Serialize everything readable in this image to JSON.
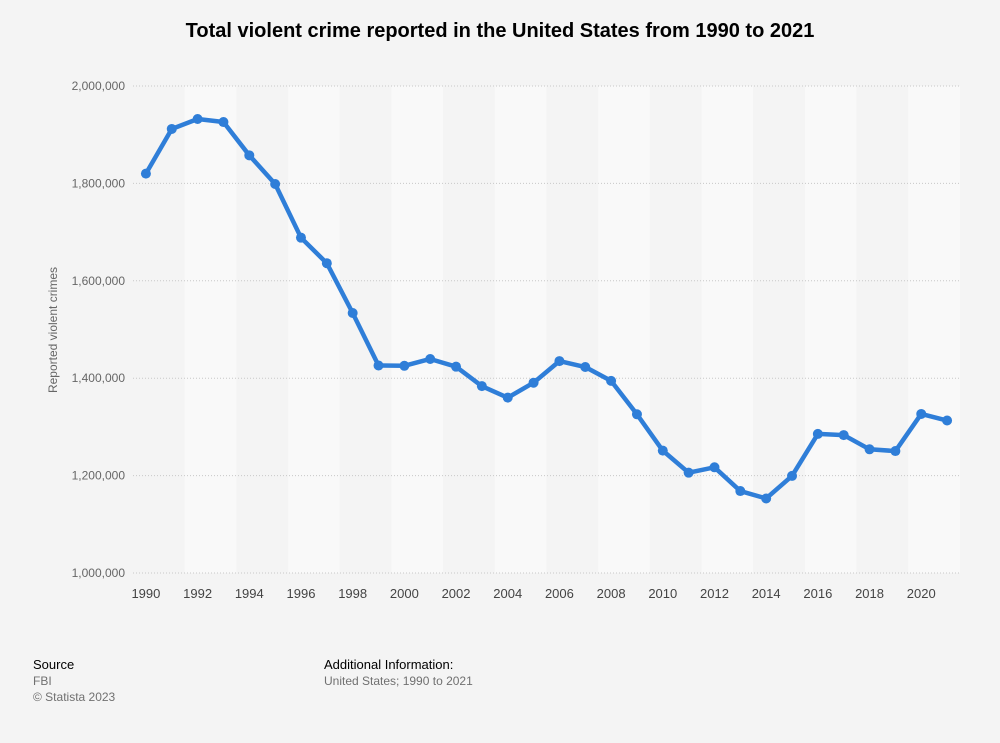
{
  "chart_data": {
    "type": "line",
    "title": "Total violent crime reported in the United States from 1990 to 2021",
    "xlabel": "",
    "ylabel": "Reported violent crimes",
    "ylim": [
      1000000,
      2000000
    ],
    "yticks": [
      1000000,
      1200000,
      1400000,
      1600000,
      1800000,
      2000000
    ],
    "ytick_labels": [
      "1,000,000",
      "1,200,000",
      "1,400,000",
      "1,600,000",
      "1,800,000",
      "2,000,000"
    ],
    "xticks": [
      "1990",
      "1992",
      "1994",
      "1996",
      "1998",
      "2000",
      "2002",
      "2004",
      "2006",
      "2008",
      "2010",
      "2012",
      "2014",
      "2016",
      "2018",
      "2020"
    ],
    "grid": true,
    "series": [
      {
        "name": "Reported violent crimes",
        "color": "#2f7ed8",
        "x": [
          1990,
          1991,
          1992,
          1993,
          1994,
          1995,
          1996,
          1997,
          1998,
          1999,
          2000,
          2001,
          2002,
          2003,
          2004,
          2005,
          2006,
          2007,
          2008,
          2009,
          2010,
          2011,
          2012,
          2013,
          2014,
          2015,
          2016,
          2017,
          2018,
          2019,
          2020,
          2021
        ],
        "values": [
          1820127,
          1911767,
          1932274,
          1926017,
          1857670,
          1798792,
          1688540,
          1636096,
          1533887,
          1426044,
          1425486,
          1439480,
          1423677,
          1383676,
          1360088,
          1390745,
          1435123,
          1422970,
          1394461,
          1325896,
          1251248,
          1206005,
          1217067,
          1168298,
          1153022,
          1199310,
          1285606,
          1283220,
          1254015,
          1250393,
          1326600,
          1313105
        ]
      }
    ]
  },
  "footer": {
    "source_heading": "Source",
    "source_name": "FBI",
    "copyright": "© Statista 2023",
    "additional_heading": "Additional Information:",
    "additional_text": "United States; 1990 to 2021"
  }
}
